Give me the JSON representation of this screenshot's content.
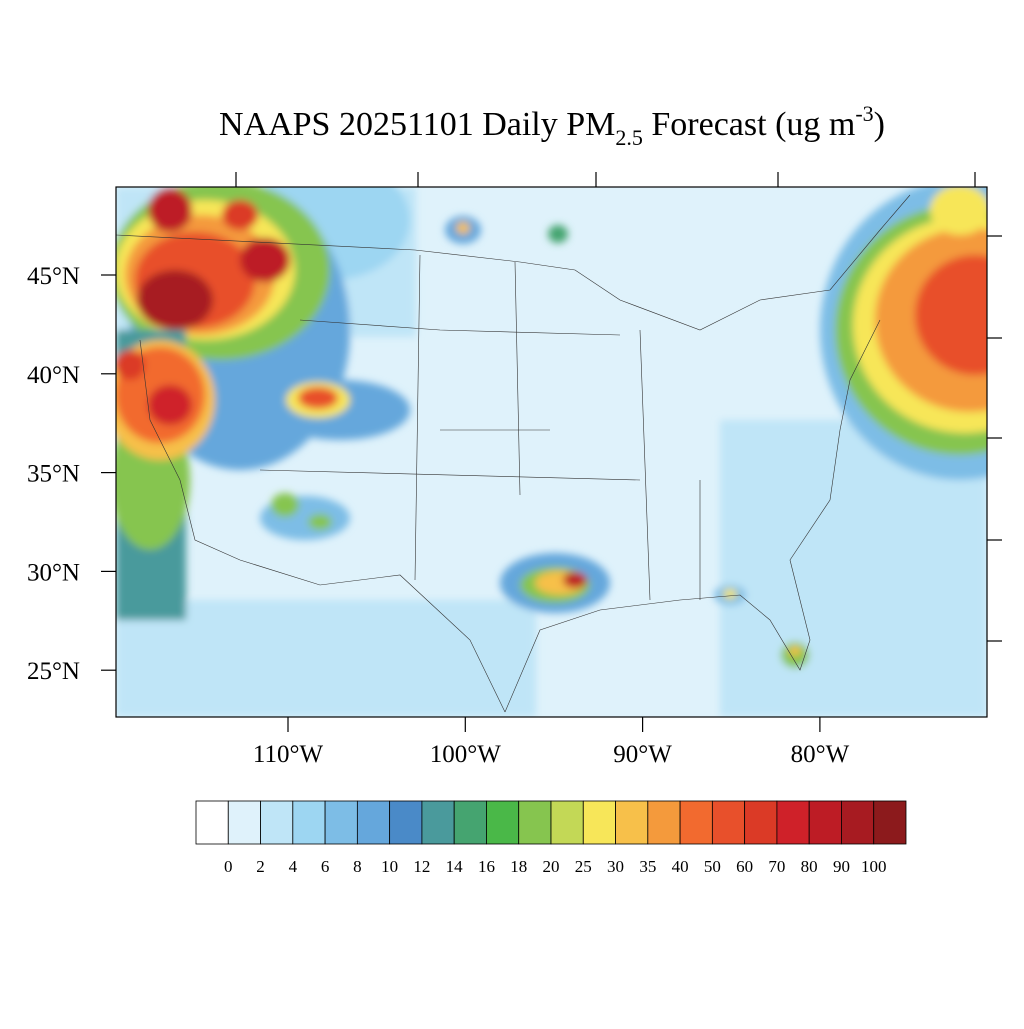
{
  "title": {
    "main": "NAAPS 20251101 Daily PM",
    "sub": "2.5",
    "mid": " Forecast (ug m",
    "sup": "-3",
    "end": ")"
  },
  "map": {
    "lat_labels": [
      "45°N",
      "40°N",
      "35°N",
      "30°N",
      "25°N"
    ],
    "lon_labels": [
      "110°W",
      "100°W",
      "90°W",
      "80°W"
    ]
  },
  "colorbar": {
    "labels": [
      "0",
      "2",
      "4",
      "6",
      "8",
      "10",
      "12",
      "14",
      "16",
      "18",
      "20",
      "25",
      "30",
      "35",
      "40",
      "50",
      "60",
      "70",
      "80",
      "90",
      "100"
    ],
    "colors": [
      "#ffffff",
      "#dff2fb",
      "#bfe5f7",
      "#9dd6f2",
      "#7dbde6",
      "#65a7dc",
      "#4a8ac8",
      "#4a9a9c",
      "#45a470",
      "#4ab848",
      "#86c54f",
      "#c3d856",
      "#f7e659",
      "#f7c04a",
      "#f49a3c",
      "#f26a2f",
      "#e8502b",
      "#db3a26",
      "#cf2129",
      "#bd1c25",
      "#a71b21",
      "#8c1a1c"
    ]
  }
}
